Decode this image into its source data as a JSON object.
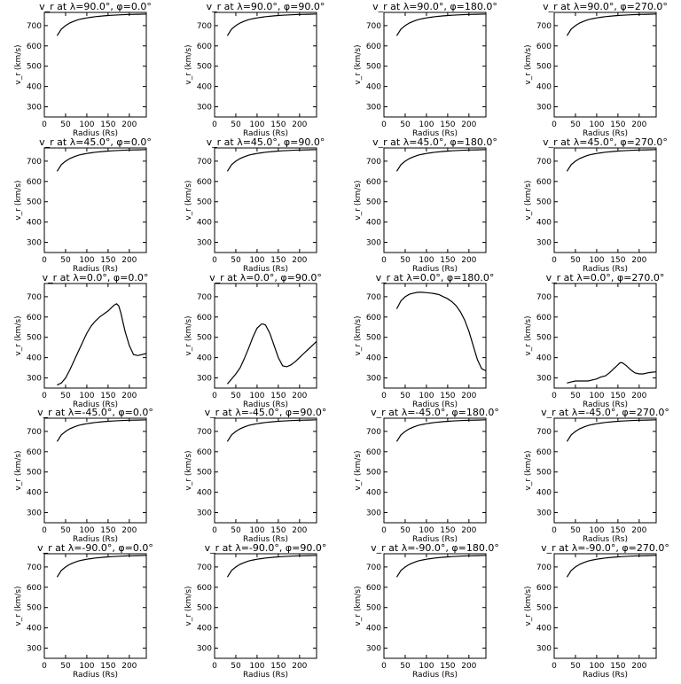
{
  "figure": {
    "ylabel": "v_r (km/s)",
    "xlabel": "Radius (Rs)"
  },
  "chart_data": [
    {
      "type": "line",
      "title": "v_r at λ=90.0°, φ=0.0°",
      "xlabel": "Radius (Rs)",
      "ylabel": "v_r (km/s)",
      "xlim": [
        0,
        240
      ],
      "ylim": [
        250,
        765
      ],
      "xticks": [
        0,
        50,
        100,
        150,
        200
      ],
      "yticks": [
        300,
        400,
        500,
        600,
        700
      ],
      "x": [
        30,
        40,
        50,
        60,
        70,
        80,
        90,
        100,
        110,
        120,
        140,
        160,
        180,
        200,
        220,
        240
      ],
      "y": [
        650,
        683,
        700,
        713,
        722,
        729,
        734,
        738,
        741,
        744,
        748,
        751,
        753,
        755,
        756,
        757
      ]
    },
    {
      "type": "line",
      "title": "v_r at λ=90.0°, φ=90.0°",
      "xlabel": "Radius (Rs)",
      "ylabel": "v_r (km/s)",
      "xlim": [
        0,
        240
      ],
      "ylim": [
        250,
        765
      ],
      "xticks": [
        0,
        50,
        100,
        150,
        200
      ],
      "yticks": [
        300,
        400,
        500,
        600,
        700
      ],
      "x": [
        30,
        40,
        50,
        60,
        70,
        80,
        90,
        100,
        110,
        120,
        140,
        160,
        180,
        200,
        220,
        240
      ],
      "y": [
        650,
        683,
        700,
        713,
        722,
        729,
        734,
        738,
        741,
        744,
        748,
        751,
        753,
        755,
        756,
        757
      ]
    },
    {
      "type": "line",
      "title": "v_r at λ=90.0°, φ=180.0°",
      "xlabel": "Radius (Rs)",
      "ylabel": "v_r (km/s)",
      "xlim": [
        0,
        240
      ],
      "ylim": [
        250,
        765
      ],
      "xticks": [
        0,
        50,
        100,
        150,
        200
      ],
      "yticks": [
        300,
        400,
        500,
        600,
        700
      ],
      "x": [
        30,
        40,
        50,
        60,
        70,
        80,
        90,
        100,
        110,
        120,
        140,
        160,
        180,
        200,
        220,
        240
      ],
      "y": [
        650,
        683,
        700,
        713,
        722,
        729,
        734,
        738,
        741,
        744,
        748,
        751,
        753,
        755,
        756,
        757
      ]
    },
    {
      "type": "line",
      "title": "v_r at λ=90.0°, φ=270.0°",
      "xlabel": "Radius (Rs)",
      "ylabel": "v_r (km/s)",
      "xlim": [
        0,
        240
      ],
      "ylim": [
        250,
        765
      ],
      "xticks": [
        0,
        50,
        100,
        150,
        200
      ],
      "yticks": [
        300,
        400,
        500,
        600,
        700
      ],
      "x": [
        30,
        40,
        50,
        60,
        70,
        80,
        90,
        100,
        110,
        120,
        140,
        160,
        180,
        200,
        220,
        240
      ],
      "y": [
        650,
        683,
        700,
        713,
        722,
        729,
        734,
        738,
        741,
        744,
        748,
        751,
        753,
        755,
        756,
        757
      ]
    },
    {
      "type": "line",
      "title": "v_r at λ=45.0°, φ=0.0°",
      "xlabel": "Radius (Rs)",
      "ylabel": "v_r (km/s)",
      "xlim": [
        0,
        240
      ],
      "ylim": [
        250,
        765
      ],
      "xticks": [
        0,
        50,
        100,
        150,
        200
      ],
      "yticks": [
        300,
        400,
        500,
        600,
        700
      ],
      "x": [
        30,
        40,
        50,
        60,
        70,
        80,
        90,
        100,
        110,
        120,
        140,
        160,
        180,
        200,
        220,
        240
      ],
      "y": [
        650,
        683,
        700,
        713,
        722,
        729,
        734,
        738,
        741,
        744,
        748,
        751,
        753,
        755,
        756,
        757
      ]
    },
    {
      "type": "line",
      "title": "v_r at λ=45.0°, φ=90.0°",
      "xlabel": "Radius (Rs)",
      "ylabel": "v_r (km/s)",
      "xlim": [
        0,
        240
      ],
      "ylim": [
        250,
        765
      ],
      "xticks": [
        0,
        50,
        100,
        150,
        200
      ],
      "yticks": [
        300,
        400,
        500,
        600,
        700
      ],
      "x": [
        30,
        40,
        50,
        60,
        70,
        80,
        90,
        100,
        110,
        120,
        140,
        160,
        180,
        200,
        220,
        240
      ],
      "y": [
        650,
        683,
        700,
        713,
        722,
        729,
        734,
        738,
        741,
        744,
        748,
        751,
        753,
        755,
        756,
        757
      ]
    },
    {
      "type": "line",
      "title": "v_r at λ=45.0°, φ=180.0°",
      "xlabel": "Radius (Rs)",
      "ylabel": "v_r (km/s)",
      "xlim": [
        0,
        240
      ],
      "ylim": [
        250,
        765
      ],
      "xticks": [
        0,
        50,
        100,
        150,
        200
      ],
      "yticks": [
        300,
        400,
        500,
        600,
        700
      ],
      "x": [
        30,
        40,
        50,
        60,
        70,
        80,
        90,
        100,
        110,
        120,
        140,
        160,
        180,
        200,
        220,
        240
      ],
      "y": [
        650,
        683,
        700,
        713,
        722,
        729,
        734,
        738,
        741,
        744,
        748,
        751,
        753,
        755,
        756,
        757
      ]
    },
    {
      "type": "line",
      "title": "v_r at λ=45.0°, φ=270.0°",
      "xlabel": "Radius (Rs)",
      "ylabel": "v_r (km/s)",
      "xlim": [
        0,
        240
      ],
      "ylim": [
        250,
        765
      ],
      "xticks": [
        0,
        50,
        100,
        150,
        200
      ],
      "yticks": [
        300,
        400,
        500,
        600,
        700
      ],
      "x": [
        30,
        40,
        50,
        60,
        70,
        80,
        90,
        100,
        110,
        120,
        140,
        160,
        180,
        200,
        220,
        240
      ],
      "y": [
        650,
        683,
        700,
        713,
        722,
        729,
        734,
        738,
        741,
        744,
        748,
        751,
        753,
        755,
        756,
        757
      ]
    },
    {
      "type": "line",
      "title": "v_r at λ=0.0°, φ=0.0°",
      "xlabel": "Radius (Rs)",
      "ylabel": "v_r (km/s)",
      "xlim": [
        0,
        240
      ],
      "ylim": [
        250,
        765
      ],
      "xticks": [
        0,
        50,
        100,
        150,
        200
      ],
      "yticks": [
        300,
        400,
        500,
        600,
        700
      ],
      "x": [
        30,
        40,
        50,
        60,
        70,
        80,
        90,
        100,
        110,
        120,
        130,
        140,
        150,
        160,
        165,
        170,
        175,
        180,
        190,
        200,
        210,
        220,
        230,
        240
      ],
      "y": [
        265,
        275,
        300,
        340,
        385,
        430,
        475,
        520,
        555,
        580,
        600,
        615,
        630,
        650,
        660,
        665,
        655,
        620,
        530,
        460,
        415,
        410,
        415,
        420
      ]
    },
    {
      "type": "line",
      "title": "v_r at λ=0.0°, φ=90.0°",
      "xlabel": "Radius (Rs)",
      "ylabel": "v_r (km/s)",
      "xlim": [
        0,
        240
      ],
      "ylim": [
        250,
        765
      ],
      "xticks": [
        0,
        50,
        100,
        150,
        200
      ],
      "yticks": [
        300,
        400,
        500,
        600,
        700
      ],
      "x": [
        30,
        40,
        50,
        60,
        70,
        80,
        90,
        100,
        110,
        115,
        120,
        130,
        140,
        150,
        160,
        170,
        180,
        190,
        200,
        210,
        220,
        230,
        240
      ],
      "y": [
        270,
        295,
        320,
        350,
        395,
        445,
        500,
        545,
        565,
        565,
        560,
        520,
        460,
        400,
        360,
        355,
        365,
        380,
        400,
        420,
        440,
        460,
        480
      ]
    },
    {
      "type": "line",
      "title": "v_r at λ=0.0°, φ=180.0°",
      "xlabel": "Radius (Rs)",
      "ylabel": "v_r (km/s)",
      "xlim": [
        0,
        240
      ],
      "ylim": [
        250,
        765
      ],
      "xticks": [
        0,
        50,
        100,
        150,
        200
      ],
      "yticks": [
        300,
        400,
        500,
        600,
        700
      ],
      "x": [
        30,
        40,
        50,
        60,
        70,
        80,
        90,
        100,
        110,
        120,
        130,
        140,
        150,
        160,
        170,
        180,
        190,
        200,
        210,
        220,
        230,
        240
      ],
      "y": [
        640,
        680,
        700,
        712,
        718,
        722,
        722,
        720,
        718,
        715,
        710,
        700,
        690,
        675,
        655,
        625,
        585,
        530,
        460,
        390,
        345,
        335
      ]
    },
    {
      "type": "line",
      "title": "v_r at λ=0.0°, φ=270.0°",
      "xlabel": "Radius (Rs)",
      "ylabel": "v_r (km/s)",
      "xlim": [
        0,
        240
      ],
      "ylim": [
        250,
        765
      ],
      "xticks": [
        0,
        50,
        100,
        150,
        200
      ],
      "yticks": [
        300,
        400,
        500,
        600,
        700
      ],
      "x": [
        30,
        40,
        50,
        60,
        70,
        80,
        90,
        100,
        110,
        120,
        130,
        140,
        150,
        155,
        160,
        170,
        180,
        190,
        200,
        210,
        220,
        230,
        240
      ],
      "y": [
        275,
        280,
        285,
        285,
        285,
        285,
        290,
        295,
        305,
        310,
        325,
        345,
        365,
        375,
        375,
        360,
        340,
        325,
        320,
        320,
        325,
        328,
        330
      ]
    },
    {
      "type": "line",
      "title": "v_r at λ=-45.0°, φ=0.0°",
      "xlabel": "Radius (Rs)",
      "ylabel": "v_r (km/s)",
      "xlim": [
        0,
        240
      ],
      "ylim": [
        250,
        765
      ],
      "xticks": [
        0,
        50,
        100,
        150,
        200
      ],
      "yticks": [
        300,
        400,
        500,
        600,
        700
      ],
      "x": [
        30,
        40,
        50,
        60,
        70,
        80,
        90,
        100,
        110,
        120,
        140,
        160,
        180,
        200,
        220,
        240
      ],
      "y": [
        650,
        683,
        700,
        713,
        722,
        729,
        734,
        738,
        741,
        744,
        748,
        751,
        753,
        755,
        756,
        757
      ]
    },
    {
      "type": "line",
      "title": "v_r at λ=-45.0°, φ=90.0°",
      "xlabel": "Radius (Rs)",
      "ylabel": "v_r (km/s)",
      "xlim": [
        0,
        240
      ],
      "ylim": [
        250,
        765
      ],
      "xticks": [
        0,
        50,
        100,
        150,
        200
      ],
      "yticks": [
        300,
        400,
        500,
        600,
        700
      ],
      "x": [
        30,
        40,
        50,
        60,
        70,
        80,
        90,
        100,
        110,
        120,
        140,
        160,
        180,
        200,
        220,
        240
      ],
      "y": [
        650,
        683,
        700,
        713,
        722,
        729,
        734,
        738,
        741,
        744,
        748,
        751,
        753,
        755,
        756,
        757
      ]
    },
    {
      "type": "line",
      "title": "v_r at λ=-45.0°, φ=180.0°",
      "xlabel": "Radius (Rs)",
      "ylabel": "v_r (km/s)",
      "xlim": [
        0,
        240
      ],
      "ylim": [
        250,
        765
      ],
      "xticks": [
        0,
        50,
        100,
        150,
        200
      ],
      "yticks": [
        300,
        400,
        500,
        600,
        700
      ],
      "x": [
        30,
        40,
        50,
        60,
        70,
        80,
        90,
        100,
        110,
        120,
        140,
        160,
        180,
        200,
        220,
        240
      ],
      "y": [
        650,
        683,
        700,
        713,
        722,
        729,
        734,
        738,
        741,
        744,
        748,
        751,
        753,
        755,
        756,
        757
      ]
    },
    {
      "type": "line",
      "title": "v_r at λ=-45.0°, φ=270.0°",
      "xlabel": "Radius (Rs)",
      "ylabel": "v_r (km/s)",
      "xlim": [
        0,
        240
      ],
      "ylim": [
        250,
        765
      ],
      "xticks": [
        0,
        50,
        100,
        150,
        200
      ],
      "yticks": [
        300,
        400,
        500,
        600,
        700
      ],
      "x": [
        30,
        40,
        50,
        60,
        70,
        80,
        90,
        100,
        110,
        120,
        140,
        160,
        180,
        200,
        220,
        240
      ],
      "y": [
        650,
        683,
        700,
        713,
        722,
        729,
        734,
        738,
        741,
        744,
        748,
        751,
        753,
        755,
        756,
        757
      ]
    },
    {
      "type": "line",
      "title": "v_r at λ=-90.0°, φ=0.0°",
      "xlabel": "Radius (Rs)",
      "ylabel": "v_r (km/s)",
      "xlim": [
        0,
        240
      ],
      "ylim": [
        250,
        765
      ],
      "xticks": [
        0,
        50,
        100,
        150,
        200
      ],
      "yticks": [
        300,
        400,
        500,
        600,
        700
      ],
      "x": [
        30,
        40,
        50,
        60,
        70,
        80,
        90,
        100,
        110,
        120,
        140,
        160,
        180,
        200,
        220,
        240
      ],
      "y": [
        650,
        683,
        700,
        713,
        722,
        729,
        734,
        738,
        741,
        744,
        748,
        751,
        753,
        755,
        756,
        757
      ]
    },
    {
      "type": "line",
      "title": "v_r at λ=-90.0°, φ=90.0°",
      "xlabel": "Radius (Rs)",
      "ylabel": "v_r (km/s)",
      "xlim": [
        0,
        240
      ],
      "ylim": [
        250,
        765
      ],
      "xticks": [
        0,
        50,
        100,
        150,
        200
      ],
      "yticks": [
        300,
        400,
        500,
        600,
        700
      ],
      "x": [
        30,
        40,
        50,
        60,
        70,
        80,
        90,
        100,
        110,
        120,
        140,
        160,
        180,
        200,
        220,
        240
      ],
      "y": [
        650,
        683,
        700,
        713,
        722,
        729,
        734,
        738,
        741,
        744,
        748,
        751,
        753,
        755,
        756,
        757
      ]
    },
    {
      "type": "line",
      "title": "v_r at λ=-90.0°, φ=180.0°",
      "xlabel": "Radius (Rs)",
      "ylabel": "v_r (km/s)",
      "xlim": [
        0,
        240
      ],
      "ylim": [
        250,
        765
      ],
      "xticks": [
        0,
        50,
        100,
        150,
        200
      ],
      "yticks": [
        300,
        400,
        500,
        600,
        700
      ],
      "x": [
        30,
        40,
        50,
        60,
        70,
        80,
        90,
        100,
        110,
        120,
        140,
        160,
        180,
        200,
        220,
        240
      ],
      "y": [
        650,
        683,
        700,
        713,
        722,
        729,
        734,
        738,
        741,
        744,
        748,
        751,
        753,
        755,
        756,
        757
      ]
    },
    {
      "type": "line",
      "title": "v_r at λ=-90.0°, φ=270.0°",
      "xlabel": "Radius (Rs)",
      "ylabel": "v_r (km/s)",
      "xlim": [
        0,
        240
      ],
      "ylim": [
        250,
        765
      ],
      "xticks": [
        0,
        50,
        100,
        150,
        200
      ],
      "yticks": [
        300,
        400,
        500,
        600,
        700
      ],
      "x": [
        30,
        40,
        50,
        60,
        70,
        80,
        90,
        100,
        110,
        120,
        140,
        160,
        180,
        200,
        220,
        240
      ],
      "y": [
        650,
        683,
        700,
        713,
        722,
        729,
        734,
        738,
        741,
        744,
        748,
        751,
        753,
        755,
        756,
        757
      ]
    }
  ]
}
